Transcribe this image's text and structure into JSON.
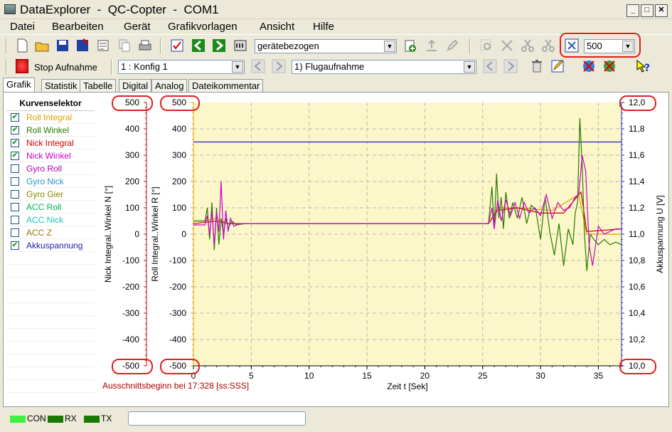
{
  "window": {
    "title": "DataExplorer  -  QC-Copter  -  COM1"
  },
  "menu": [
    "Datei",
    "Bearbeiten",
    "Gerät",
    "Grafikvorlagen",
    "Ansicht",
    "Hilfe"
  ],
  "toolbar1": {
    "mode_combo": "gerätebezogen",
    "zoom_combo": "500"
  },
  "toolbar2": {
    "record_label": "Stop Aufnahme",
    "config_combo": "1 : Konfig 1",
    "recording_combo": "1) Flugaufnahme"
  },
  "tabs": [
    "Grafik",
    "Statistik",
    "Tabelle",
    "Digital",
    "Analog",
    "Dateikommentar"
  ],
  "selector": {
    "title": "Kurvenselektor",
    "items": [
      {
        "label": "Roll Integral",
        "checked": true,
        "color": "#e0a000"
      },
      {
        "label": "Roll Winkel",
        "checked": true,
        "color": "#2a7a00"
      },
      {
        "label": "Nick Integral",
        "checked": true,
        "color": "#d00000"
      },
      {
        "label": "Nick Winkel",
        "checked": true,
        "color": "#cc00cc"
      },
      {
        "label": "Gyro Roll",
        "checked": false,
        "color": "#b000b0"
      },
      {
        "label": "Gyro Nick",
        "checked": false,
        "color": "#2090d0"
      },
      {
        "label": "Gyro Gier",
        "checked": false,
        "color": "#888800"
      },
      {
        "label": "ACC Roll",
        "checked": false,
        "color": "#00b050"
      },
      {
        "label": "ACC Nick",
        "checked": false,
        "color": "#20c0c0"
      },
      {
        "label": "ACC Z",
        "checked": false,
        "color": "#a07000"
      },
      {
        "label": "Akkuspannung",
        "checked": true,
        "color": "#2020b0"
      }
    ]
  },
  "chart_data": {
    "type": "line",
    "xlabel": "Zeit  t  [Sek]",
    "xlim": [
      0,
      37
    ],
    "xticks": [
      "0",
      "5",
      "10",
      "15",
      "20",
      "25",
      "30",
      "35"
    ],
    "left_axis_nick": {
      "label": "Nick Integral..Winkel  N  [°]",
      "ylim": [
        -500,
        500
      ],
      "ticks": [
        "500",
        "400",
        "300",
        "200",
        "100",
        "0",
        "-100",
        "-200",
        "-300",
        "-400",
        "-500"
      ]
    },
    "left_axis_roll": {
      "label": "Roll Integral..Winkel  R  [°]",
      "ylim": [
        -500,
        500
      ],
      "ticks": [
        "500",
        "400",
        "300",
        "200",
        "100",
        "0",
        "-100",
        "-200",
        "-300",
        "-400",
        "-500"
      ]
    },
    "right_axis": {
      "label": "Akkuspannung  U  [V]",
      "ylim": [
        10.0,
        12.0
      ],
      "ticks": [
        "12,0",
        "11,8",
        "11,6",
        "11,4",
        "11,2",
        "11,0",
        "10,8",
        "10,6",
        "10,4",
        "10,2",
        "10,0"
      ]
    },
    "annotation": "Ausschnittsbeginn bei 17:328 [ss:SSS]",
    "grid": true,
    "series": [
      {
        "name": "Akkuspannung",
        "axis": "right",
        "color": "#2020c0",
        "x": [
          0,
          37
        ],
        "y": [
          11.7,
          11.7
        ]
      },
      {
        "name": "Roll Integral",
        "axis": "left",
        "color": "#e0a000",
        "x": [
          0,
          1,
          2,
          3,
          5,
          25.5,
          26.3,
          28,
          31,
          33.3,
          34,
          37
        ],
        "y": [
          50,
          50,
          60,
          40,
          40,
          40,
          100,
          100,
          90,
          150,
          0,
          0
        ]
      },
      {
        "name": "Nick Integral",
        "axis": "left",
        "color": "#d00000",
        "x": [
          0,
          1,
          2,
          3,
          5,
          25.5,
          26.3,
          28,
          30,
          32,
          33.5,
          34,
          37
        ],
        "y": [
          40,
          45,
          50,
          40,
          40,
          40,
          90,
          100,
          80,
          80,
          160,
          10,
          20
        ]
      },
      {
        "name": "Roll Winkel",
        "axis": "left",
        "color": "#2a7a00",
        "x": [
          0,
          1,
          1.2,
          1.4,
          1.6,
          1.8,
          2.0,
          2.2,
          2.4,
          2.6,
          2.8,
          3.0,
          3.3,
          3.7,
          4.5,
          5,
          25.5,
          25.8,
          26.0,
          26.2,
          26.4,
          26.6,
          26.8,
          27.0,
          27.3,
          27.6,
          28.0,
          28.4,
          28.8,
          29.2,
          29.6,
          30.0,
          30.4,
          30.8,
          31.2,
          31.6,
          32.0,
          32.4,
          32.8,
          33.0,
          33.2,
          33.4,
          33.6,
          33.8,
          34.0,
          34.3,
          34.6,
          35.0,
          35.5,
          36.0,
          36.5,
          37
        ],
        "y": [
          50,
          50,
          100,
          -20,
          120,
          -60,
          100,
          -40,
          60,
          0,
          60,
          20,
          50,
          35,
          40,
          40,
          40,
          180,
          20,
          230,
          60,
          140,
          20,
          160,
          60,
          120,
          60,
          140,
          40,
          110,
          90,
          -20,
          140,
          10,
          -80,
          40,
          -120,
          20,
          -40,
          80,
          120,
          440,
          260,
          0,
          -140,
          0,
          -20,
          -40,
          -20,
          -40,
          -30,
          -40
        ]
      },
      {
        "name": "Nick Winkel",
        "axis": "left",
        "color": "#cc00cc",
        "x": [
          0,
          1,
          1.2,
          1.4,
          1.6,
          1.8,
          2.0,
          2.2,
          2.4,
          2.6,
          2.8,
          3.0,
          3.2,
          3.5,
          4.0,
          5,
          25.5,
          25.8,
          26.0,
          26.3,
          26.6,
          27.0,
          27.4,
          27.8,
          28.2,
          28.6,
          29.0,
          29.5,
          30.0,
          30.5,
          31.0,
          31.5,
          32.0,
          32.5,
          33.0,
          33.3,
          33.6,
          33.9,
          34.2,
          34.5,
          35.0,
          35.5,
          36.0,
          36.5,
          37
        ],
        "y": [
          35,
          35,
          70,
          0,
          90,
          -40,
          80,
          10,
          200,
          -20,
          90,
          10,
          60,
          30,
          40,
          40,
          40,
          100,
          20,
          130,
          50,
          130,
          70,
          120,
          60,
          120,
          80,
          100,
          70,
          150,
          60,
          120,
          90,
          100,
          140,
          150,
          300,
          240,
          -40,
          -120,
          30,
          0,
          10,
          20,
          20
        ]
      }
    ]
  },
  "status": {
    "con": "CON",
    "rx": "RX",
    "tx": "TX"
  }
}
